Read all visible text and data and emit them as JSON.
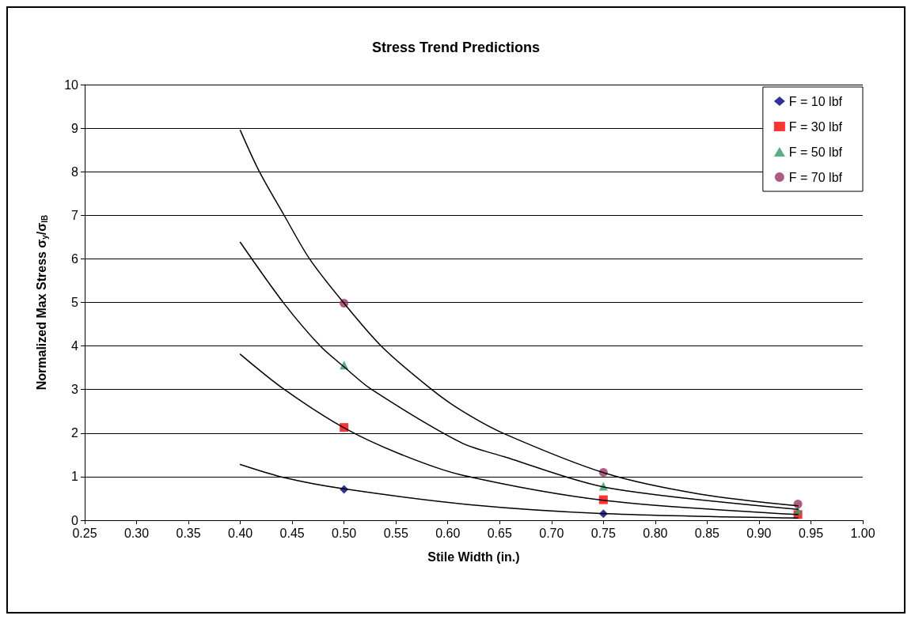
{
  "chart_data": {
    "type": "scatter",
    "title": "Stress Trend Predictions",
    "xlabel": "Stile Width (in.)",
    "ylabel": "Normalized Max Stress σ$_{y}$/σ$_{IB}$",
    "x": [
      0.5,
      0.75,
      0.9375
    ],
    "series": [
      {
        "name": "F = 10 lbf",
        "color": "#000080",
        "marker": "diamond",
        "values": [
          0.71,
          0.15,
          null
        ]
      },
      {
        "name": "F = 30 lbf",
        "color": "#ff0000",
        "marker": "square",
        "values": [
          2.13,
          0.47,
          0.13
        ]
      },
      {
        "name": "F = 50 lbf",
        "color": "#339966",
        "marker": "triangle",
        "values": [
          3.56,
          0.78,
          0.22
        ]
      },
      {
        "name": "F = 70 lbf",
        "color": "#993366",
        "marker": "circle",
        "values": [
          4.98,
          1.1,
          0.37
        ]
      },
      {
        "type": "line",
        "color": "#000000",
        "marker": "none",
        "x": [
          0.4,
          0.442,
          0.5,
          0.62,
          0.753,
          0.9375
        ],
        "values": [
          1.28,
          0.98,
          0.72,
          0.36,
          0.15,
          0.05
        ]
      },
      {
        "type": "line",
        "color": "#000000",
        "marker": "none",
        "x": [
          0.4,
          0.442,
          0.5,
          0.554,
          0.613,
          0.753,
          0.9375
        ],
        "values": [
          3.81,
          3.01,
          2.12,
          1.52,
          1.04,
          0.45,
          0.13
        ]
      },
      {
        "type": "line",
        "color": "#000000",
        "marker": "none",
        "x": [
          0.4,
          0.442,
          0.477,
          0.5,
          0.526,
          0.613,
          0.654,
          0.753,
          0.9375
        ],
        "values": [
          6.38,
          4.98,
          4.0,
          3.52,
          3.01,
          1.78,
          1.46,
          0.75,
          0.25
        ]
      },
      {
        "type": "line",
        "color": "#000000",
        "marker": "none",
        "x": [
          0.4,
          0.418,
          0.442,
          0.467,
          0.5,
          0.537,
          0.584,
          0.613,
          0.654,
          0.753,
          0.843,
          0.9375
        ],
        "values": [
          8.95,
          8.02,
          7.01,
          5.99,
          4.98,
          3.97,
          3.01,
          2.52,
          1.99,
          1.07,
          0.6,
          0.33
        ]
      }
    ],
    "xlim": [
      0.25,
      1.0
    ],
    "xticks": [
      {
        "value": 0.25,
        "label": "0.25"
      },
      {
        "value": 0.3,
        "label": "0.30"
      },
      {
        "value": 0.35,
        "label": "0.35"
      },
      {
        "value": 0.4,
        "label": "0.40"
      },
      {
        "value": 0.45,
        "label": "0.45"
      },
      {
        "value": 0.5,
        "label": "0.50"
      },
      {
        "value": 0.55,
        "label": "0.55"
      },
      {
        "value": 0.6,
        "label": "0.60"
      },
      {
        "value": 0.65,
        "label": "0.65"
      },
      {
        "value": 0.7,
        "label": "0.70"
      },
      {
        "value": 0.75,
        "label": "0.75"
      },
      {
        "value": 0.8,
        "label": "0.80"
      },
      {
        "value": 0.85,
        "label": "0.85"
      },
      {
        "value": 0.9,
        "label": "0.90"
      },
      {
        "value": 0.95,
        "label": "0.95"
      },
      {
        "value": 1.0,
        "label": "1.00"
      }
    ],
    "ylim": [
      0,
      10
    ],
    "yticks": [
      0,
      1,
      2,
      3,
      4,
      5,
      6,
      7,
      8,
      9,
      10
    ],
    "grid": "y",
    "legend": "top right"
  }
}
